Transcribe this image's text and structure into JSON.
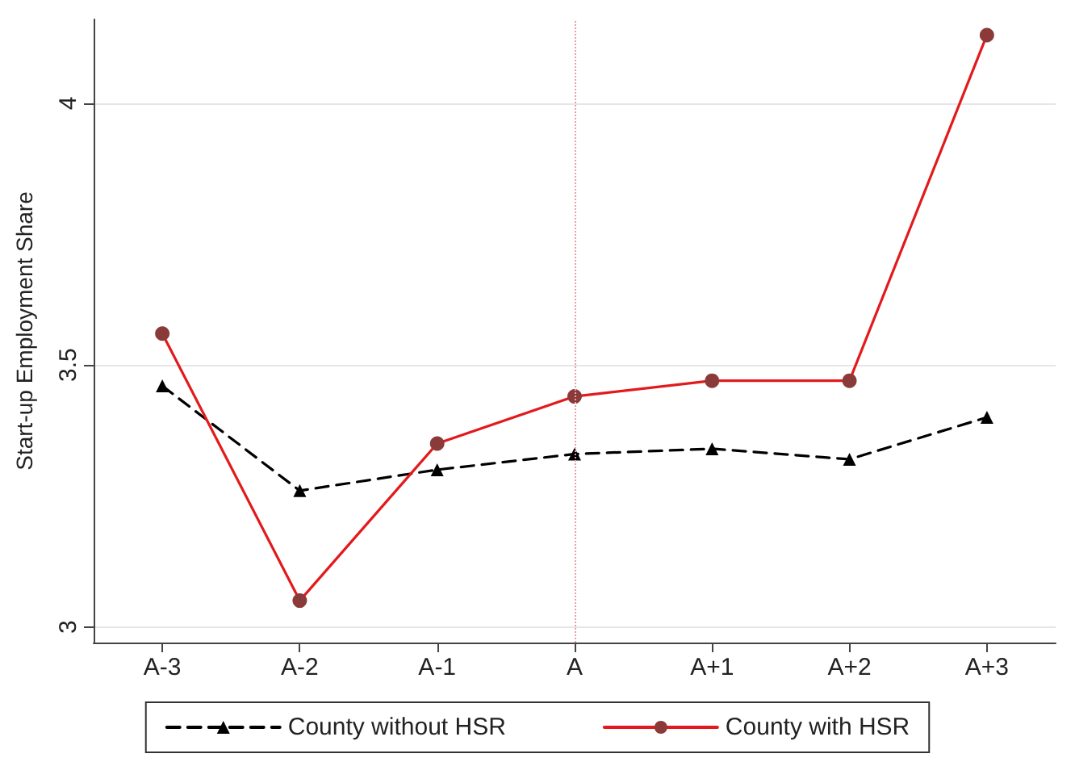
{
  "chart_data": {
    "type": "line",
    "ylabel": "Start-up Employment Share",
    "categories": [
      "A-3",
      "A-2",
      "A-1",
      "A",
      "A+1",
      "A+2",
      "A+3"
    ],
    "series": [
      {
        "name": "County without HSR",
        "color": "#000000",
        "marker": "triangle",
        "line_style": "dashed",
        "values": [
          3.46,
          3.26,
          3.3,
          3.33,
          3.34,
          3.32,
          3.4
        ]
      },
      {
        "name": "County with HSR",
        "color": "#e31a1c",
        "marker": "circle",
        "line_style": "solid",
        "values": [
          3.56,
          3.05,
          3.35,
          3.44,
          3.47,
          3.47,
          4.13
        ]
      }
    ],
    "ylim": [
      2.97,
      4.16
    ],
    "yticks": [
      3,
      3.5,
      4
    ],
    "grid": "y",
    "legend": "bottom",
    "ref_lines": [
      {
        "axis": "x",
        "value": "A",
        "color": "#e8a0a8",
        "line_style": "dotted"
      }
    ]
  }
}
